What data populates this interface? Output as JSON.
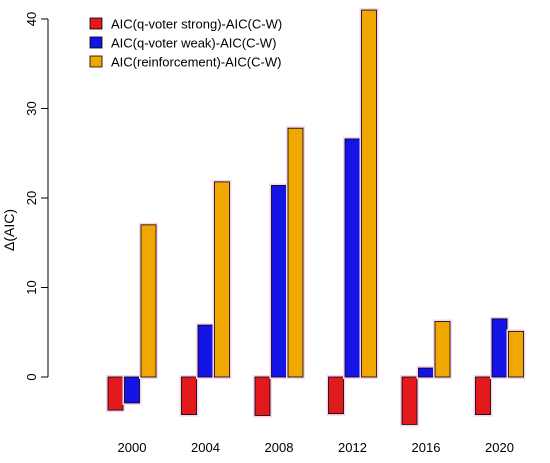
{
  "chart_data": {
    "type": "bar",
    "title": "",
    "xlabel": "",
    "ylabel": "Δ(AIC)",
    "ylim": [
      -5.5,
      41
    ],
    "yticks": [
      0,
      10,
      20,
      30,
      40
    ],
    "categories": [
      "2000",
      "2004",
      "2008",
      "2012",
      "2016",
      "2020"
    ],
    "series": [
      {
        "name": "AIC(q-voter strong)-AIC(C-W)",
        "color": "#e31a1c",
        "values": [
          -3.7,
          -4.2,
          -4.3,
          -4.1,
          -5.3,
          -4.2
        ]
      },
      {
        "name": "AIC(q-voter weak)-AIC(C-W)",
        "color": "#1414e6",
        "values": [
          -2.9,
          5.8,
          21.4,
          26.6,
          1.0,
          6.5
        ]
      },
      {
        "name": "AIC(reinforcement)-AIC(C-W)",
        "color": "#f0a800",
        "values": [
          17.0,
          21.8,
          27.8,
          41.0,
          6.2,
          5.1
        ]
      }
    ],
    "legend_position": "top-left",
    "grid": false
  }
}
